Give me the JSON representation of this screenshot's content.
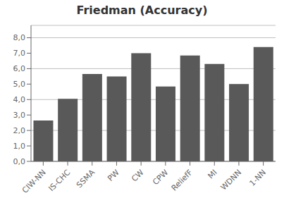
{
  "chart_data": {
    "type": "bar",
    "title": "Friedman (Accuracy)",
    "categories": [
      "CIW-NN",
      "IS-CHC",
      "SSMA",
      "PW",
      "CW",
      "CPW",
      "ReliefF",
      "MI",
      "WDNN",
      "1-NN"
    ],
    "values": [
      2.65,
      4.05,
      5.65,
      5.5,
      7.0,
      4.85,
      6.85,
      6.3,
      5.0,
      7.4
    ],
    "color": "#595959",
    "ylim": [
      0,
      8.8
    ],
    "yticks": [
      {
        "value": 0.0,
        "label": "0,0"
      },
      {
        "value": 1.0,
        "label": "1,0"
      },
      {
        "value": 2.0,
        "label": "2,0"
      },
      {
        "value": 3.0,
        "label": "3,0"
      },
      {
        "value": 4.0,
        "label": "4,0"
      },
      {
        "value": 5.0,
        "label": "5,0"
      },
      {
        "value": 6.0,
        "label": "6,0"
      },
      {
        "value": 7.0,
        "label": "7,0"
      },
      {
        "value": 8.0,
        "label": "8,0"
      }
    ],
    "grid": true
  }
}
